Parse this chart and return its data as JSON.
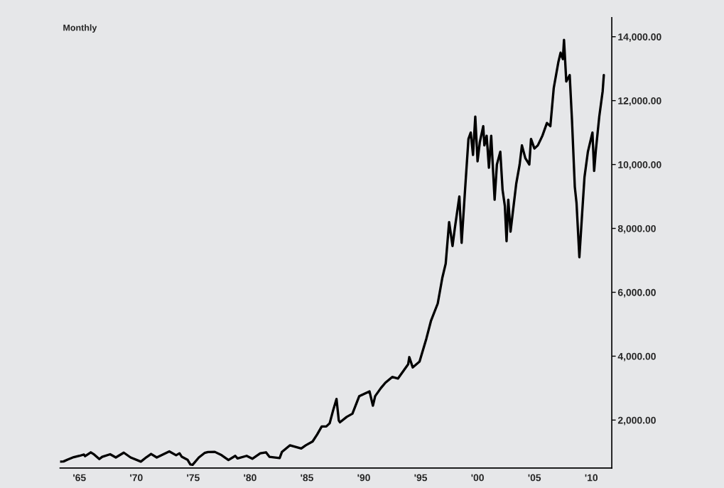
{
  "chart_data": {
    "type": "line",
    "title": "Monthly",
    "color": "#000000",
    "x": [
      1963.3,
      1963.6,
      1964.0,
      1964.5,
      1965.0,
      1965.4,
      1965.5,
      1966.0,
      1966.3,
      1966.75,
      1967.0,
      1967.7,
      1968.2,
      1968.9,
      1969.5,
      1970.4,
      1970.9,
      1971.3,
      1971.8,
      1972.9,
      1973.5,
      1973.8,
      1974.0,
      1974.5,
      1974.75,
      1974.95,
      1975.5,
      1976.0,
      1976.3,
      1976.9,
      1977.5,
      1978.1,
      1978.7,
      1978.9,
      1979.7,
      1980.2,
      1980.9,
      1981.4,
      1981.7,
      1982.6,
      1982.8,
      1983.5,
      1984.5,
      1984.9,
      1985.5,
      1985.9,
      1986.3,
      1986.7,
      1987.0,
      1987.3,
      1987.6,
      1987.8,
      1987.9,
      1988.5,
      1989.0,
      1989.6,
      1990.5,
      1990.8,
      1991.0,
      1991.5,
      1991.9,
      1992.5,
      1993.0,
      1993.9,
      1994.0,
      1994.3,
      1994.9,
      1995.5,
      1995.9,
      1996.5,
      1996.9,
      1997.2,
      1997.5,
      1997.8,
      1998.0,
      1998.4,
      1998.6,
      1998.9,
      1999.2,
      1999.4,
      1999.6,
      1999.8,
      2000.0,
      2000.2,
      2000.5,
      2000.6,
      2000.8,
      2001.0,
      2001.2,
      2001.5,
      2001.7,
      2002.0,
      2002.2,
      2002.4,
      2002.55,
      2002.7,
      2002.9,
      2003.1,
      2003.4,
      2003.7,
      2003.9,
      2004.2,
      2004.55,
      2004.7,
      2005.0,
      2005.3,
      2005.7,
      2006.1,
      2006.4,
      2006.7,
      2007.1,
      2007.3,
      2007.5,
      2007.6,
      2007.8,
      2008.1,
      2008.3,
      2008.55,
      2008.7,
      2008.95,
      2009.2,
      2009.4,
      2009.7,
      2010.1,
      2010.25,
      2010.4,
      2010.7,
      2011.0,
      2011.1
    ],
    "values": [
      700,
      705,
      770,
      840,
      880,
      920,
      870,
      990,
      920,
      780,
      850,
      930,
      830,
      980,
      830,
      700,
      840,
      940,
      830,
      1020,
      900,
      960,
      850,
      760,
      610,
      600,
      830,
      970,
      1000,
      1005,
      900,
      750,
      880,
      800,
      880,
      790,
      960,
      990,
      850,
      810,
      1000,
      1210,
      1110,
      1210,
      1330,
      1550,
      1800,
      1800,
      1900,
      2300,
      2660,
      1990,
      1930,
      2100,
      2200,
      2750,
      2900,
      2450,
      2750,
      3000,
      3170,
      3350,
      3300,
      3750,
      3970,
      3650,
      3830,
      4550,
      5100,
      5650,
      6450,
      6900,
      8200,
      7450,
      8000,
      9000,
      7550,
      9200,
      10800,
      11000,
      10300,
      11500,
      10100,
      10700,
      11200,
      10600,
      10900,
      9900,
      10900,
      8900,
      10000,
      10400,
      9200,
      8700,
      7600,
      8900,
      7900,
      8500,
      9400,
      10000,
      10600,
      10200,
      10000,
      10800,
      10500,
      10600,
      10900,
      11300,
      11200,
      12400,
      13200,
      13500,
      13300,
      13900,
      12600,
      12800,
      11400,
      9300,
      8800,
      7100,
      8500,
      9600,
      10400,
      11000,
      9800,
      10450,
      11500,
      12300,
      12800
    ],
    "xlim": [
      1963.3,
      2011.8
    ],
    "ylim": [
      500,
      14600
    ],
    "xticks": [
      {
        "value": 1965,
        "label": "'65"
      },
      {
        "value": 1970,
        "label": "'70"
      },
      {
        "value": 1975,
        "label": "'75"
      },
      {
        "value": 1980,
        "label": "'80"
      },
      {
        "value": 1985,
        "label": "'85"
      },
      {
        "value": 1990,
        "label": "'90"
      },
      {
        "value": 1995,
        "label": "'95"
      },
      {
        "value": 2000,
        "label": "'00"
      },
      {
        "value": 2005,
        "label": "'05"
      },
      {
        "value": 2010,
        "label": "'10"
      }
    ],
    "yticks": [
      {
        "value": 2000,
        "label": "2,000.00"
      },
      {
        "value": 4000,
        "label": "4,000.00"
      },
      {
        "value": 6000,
        "label": "6,000.00"
      },
      {
        "value": 8000,
        "label": "8,000.00"
      },
      {
        "value": 10000,
        "label": "10,000.00"
      },
      {
        "value": 12000,
        "label": "12,000.00"
      },
      {
        "value": 14000,
        "label": "14,000.00"
      }
    ],
    "grid": false,
    "legend": false
  }
}
